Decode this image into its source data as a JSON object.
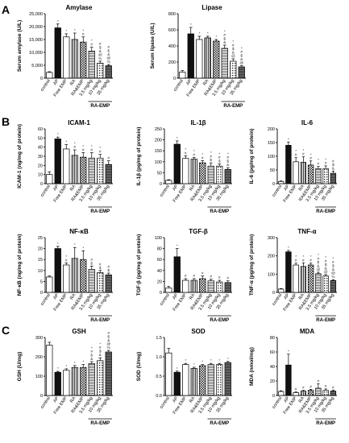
{
  "panel_letters": [
    "A",
    "B",
    "C"
  ],
  "group_label": "RA-EMP",
  "colors": {
    "control": "#ffffff",
    "AP": "#111111",
    "Free EMP": "#ffffff",
    "RA": "#9a9a9a",
    "RA&EMP": "#c8c8c8",
    "3.5 mg/kg": "#e2e2e2",
    "10 mg/kg": "#b8b8b8",
    "35 mg/kg": "#8c8c8c"
  },
  "chart_data": [
    {
      "type": "bar",
      "panel": "A",
      "title": "Amylase",
      "ylabel": "Serum amylase (U/L)",
      "categories": [
        "control",
        "AP",
        "Free EMP",
        "RA",
        "RA&EMP",
        "3.5 mg/kg",
        "10 mg/kg",
        "35 mg/kg"
      ],
      "values": [
        2200,
        19500,
        16000,
        15000,
        14000,
        10500,
        5800,
        4800
      ],
      "errors": [
        300,
        1500,
        1200,
        2500,
        2000,
        1500,
        800,
        500
      ],
      "ylim": [
        0,
        25000
      ],
      "yticks": [
        "0",
        "5,000",
        "10,000",
        "15,000",
        "20,000",
        "25,000"
      ],
      "annotations": [
        "",
        "*",
        "*",
        "*",
        "*\n#",
        "*\n#",
        "#\n$\n&\n@\n%",
        "#\n$\n&\n@\n%"
      ]
    },
    {
      "type": "bar",
      "panel": "A",
      "title": "Lipase",
      "ylabel": "Serum lipase (U/L)",
      "categories": [
        "control",
        "AP",
        "Free EMP",
        "RA",
        "RA&EMP",
        "3.5 mg/kg",
        "10 mg/kg",
        "35 mg/kg"
      ],
      "values": [
        75,
        550,
        480,
        500,
        460,
        370,
        210,
        140
      ],
      "errors": [
        20,
        80,
        40,
        20,
        20,
        40,
        30,
        15
      ],
      "ylim": [
        0,
        800
      ],
      "yticks": [
        "0",
        "200",
        "400",
        "600",
        "800"
      ],
      "annotations": [
        "",
        "*",
        "*",
        "*",
        "*",
        "*\n#\n$\n&",
        "*\n#\n$\n&\n@",
        "*\n#\n$\n&\n@"
      ]
    },
    {
      "type": "bar",
      "panel": "B",
      "title": "ICAM-1",
      "ylabel": "ICAM-1 (ng/mg of protein)",
      "categories": [
        "control",
        "AP",
        "Free EMP",
        "RA",
        "RA&EMP",
        "3.5 mg/kg",
        "10 mg/kg",
        "35 mg/kg"
      ],
      "values": [
        10,
        49,
        38,
        31,
        29,
        28,
        28,
        21
      ],
      "errors": [
        3,
        2,
        5,
        6,
        5,
        6,
        4,
        4
      ],
      "ylim": [
        0,
        60
      ],
      "yticks": [
        "0",
        "10",
        "20",
        "30",
        "40",
        "50",
        "60"
      ],
      "annotations": [
        "",
        "*",
        "*",
        "*\n#",
        "*\n#",
        "*\n#",
        "*\n#",
        "#"
      ]
    },
    {
      "type": "bar",
      "panel": "B",
      "title": "IL-1β",
      "ylabel": "IL-1β (pg/mg of protein)",
      "categories": [
        "control",
        "AP",
        "Free EMP",
        "RA",
        "RA&EMP",
        "3.5 mg/kg",
        "10 mg/kg",
        "35 mg/kg"
      ],
      "values": [
        15,
        180,
        115,
        112,
        95,
        80,
        80,
        65
      ],
      "errors": [
        3,
        15,
        12,
        8,
        10,
        15,
        10,
        8
      ],
      "ylim": [
        0,
        250
      ],
      "yticks": [
        "0",
        "50",
        "100",
        "150",
        "200",
        "250"
      ],
      "annotations": [
        "",
        "*",
        "*\n#",
        "*\n#",
        "*\n#",
        "*\n#\n$",
        "*\n#\n$",
        "*\n#\n$\n&"
      ]
    },
    {
      "type": "bar",
      "panel": "B",
      "title": "IL-6",
      "ylabel": "IL-6 (pg/mg of protein)",
      "categories": [
        "control",
        "AP",
        "Free EMP",
        "RA",
        "RA&EMP",
        "3.5 mg/kg",
        "10 mg/kg",
        "35 mg/kg"
      ],
      "values": [
        8,
        140,
        80,
        78,
        68,
        55,
        55,
        38
      ],
      "errors": [
        2,
        12,
        15,
        20,
        15,
        8,
        10,
        8
      ],
      "ylim": [
        0,
        200
      ],
      "yticks": [
        "0",
        "50",
        "100",
        "150",
        "200"
      ],
      "annotations": [
        "",
        "*",
        "*\n#",
        "*\n#",
        "*\n#",
        "*\n#",
        "*\n#",
        "#\n$\n&"
      ]
    },
    {
      "type": "bar",
      "panel": "B",
      "title": "NF-κB",
      "ylabel": "NF-κB (ng/mg of protein)",
      "categories": [
        "control",
        "AP",
        "Free EMP",
        "RA",
        "RA&EMP",
        "3.5 mg/kg",
        "10 mg/kg",
        "35 mg/kg"
      ],
      "values": [
        7,
        20,
        12.5,
        15.5,
        15,
        10.5,
        9,
        8
      ],
      "errors": [
        0.5,
        1,
        1,
        5,
        4,
        1.5,
        1,
        0.8
      ],
      "ylim": [
        0,
        25
      ],
      "yticks": [
        "0",
        "5",
        "10",
        "15",
        "20",
        "25"
      ],
      "annotations": [
        "",
        "*",
        "*\n#",
        "*",
        "*",
        "#\n$",
        "#\n$",
        "#\n$"
      ]
    },
    {
      "type": "bar",
      "panel": "B",
      "title": "TGF-β",
      "ylabel": "TGF-β (pg/mg of protein)",
      "categories": [
        "control",
        "AP",
        "Free EMP",
        "RA",
        "RA&EMP",
        "3.5 mg/kg",
        "10 mg/kg",
        "35 mg/kg"
      ],
      "values": [
        8,
        65,
        22,
        22,
        25,
        21,
        19,
        18
      ],
      "errors": [
        3,
        15,
        3,
        3,
        5,
        3,
        3,
        3
      ],
      "ylim": [
        0,
        100
      ],
      "yticks": [
        "0",
        "20",
        "40",
        "60",
        "80",
        "100"
      ],
      "annotations": [
        "",
        "*",
        "#",
        "#",
        "#",
        "#",
        "#",
        "#"
      ]
    },
    {
      "type": "bar",
      "panel": "B",
      "title": "TNF-α",
      "ylabel": "TNF-α (pg/mg of protein)",
      "categories": [
        "control",
        "AP",
        "Free EMP",
        "RA",
        "RA&EMP",
        "3.5 mg/kg",
        "10 mg/kg",
        "35 mg/kg"
      ],
      "values": [
        18,
        222,
        150,
        142,
        150,
        102,
        90,
        65
      ],
      "errors": [
        3,
        8,
        10,
        20,
        10,
        8,
        8,
        5
      ],
      "ylim": [
        0,
        300
      ],
      "yticks": [
        "0",
        "100",
        "200",
        "300"
      ],
      "annotations": [
        "",
        "*",
        "*\n#",
        "*\n#",
        "*\n#",
        "*\n#\n$\n&\n@",
        "*\n#\n$\n&\n@",
        "*\n#\n$\n&\n@\n%"
      ]
    },
    {
      "type": "bar",
      "panel": "C",
      "title": "GSH",
      "ylabel": "GSH (U/mg)",
      "categories": [
        "control",
        "AP",
        "Free EMP",
        "RA",
        "RA&EMP",
        "3.5 mg/kg",
        "10 mg/kg",
        "35 mg/kg"
      ],
      "values": [
        260,
        120,
        130,
        145,
        145,
        165,
        180,
        225
      ],
      "errors": [
        15,
        5,
        8,
        10,
        15,
        10,
        15,
        8
      ],
      "ylim": [
        0,
        300
      ],
      "yticks": [
        "0",
        "100",
        "200",
        "300"
      ],
      "annotations": [
        "",
        "*",
        "*",
        "*",
        "*",
        "*\n#\n$\n&",
        "*\n#\n$\n&",
        "#\n$\n&\n@\n%"
      ]
    },
    {
      "type": "bar",
      "panel": "C",
      "title": "SOD",
      "ylabel": "SOD (U/mg)",
      "categories": [
        "control",
        "AP",
        "Free EMP",
        "RA",
        "RA&EMP",
        "3.5 mg/kg",
        "10 mg/kg",
        "35 mg/kg"
      ],
      "values": [
        1.1,
        0.6,
        0.8,
        0.7,
        0.77,
        0.8,
        0.8,
        0.85
      ],
      "errors": [
        0.12,
        0.03,
        0.03,
        0.03,
        0.03,
        0.03,
        0.03,
        0.03
      ],
      "ylim": [
        0,
        1.5
      ],
      "yticks": [
        "0.0",
        "0.5",
        "1.0",
        "1.5"
      ],
      "annotations": [
        "",
        "*",
        "*",
        "*",
        "*",
        "*",
        "*",
        "*"
      ]
    },
    {
      "type": "bar",
      "panel": "C",
      "title": "MDA",
      "ylabel": "MDA (nmol/mg)",
      "categories": [
        "control",
        "AP",
        "Free EMP",
        "RA",
        "RA&EMP",
        "3.5 mg/kg",
        "10 mg/kg",
        "35 mg/kg"
      ],
      "values": [
        5.5,
        42,
        4,
        6,
        7,
        10,
        7,
        6
      ],
      "errors": [
        1,
        15,
        1,
        1,
        1.5,
        6,
        2,
        1.5
      ],
      "ylim": [
        0,
        80
      ],
      "yticks": [
        "0",
        "20",
        "40",
        "60",
        "80"
      ],
      "annotations": [
        "",
        "*",
        "#",
        "#",
        "#",
        "#",
        "#",
        "#"
      ]
    }
  ]
}
